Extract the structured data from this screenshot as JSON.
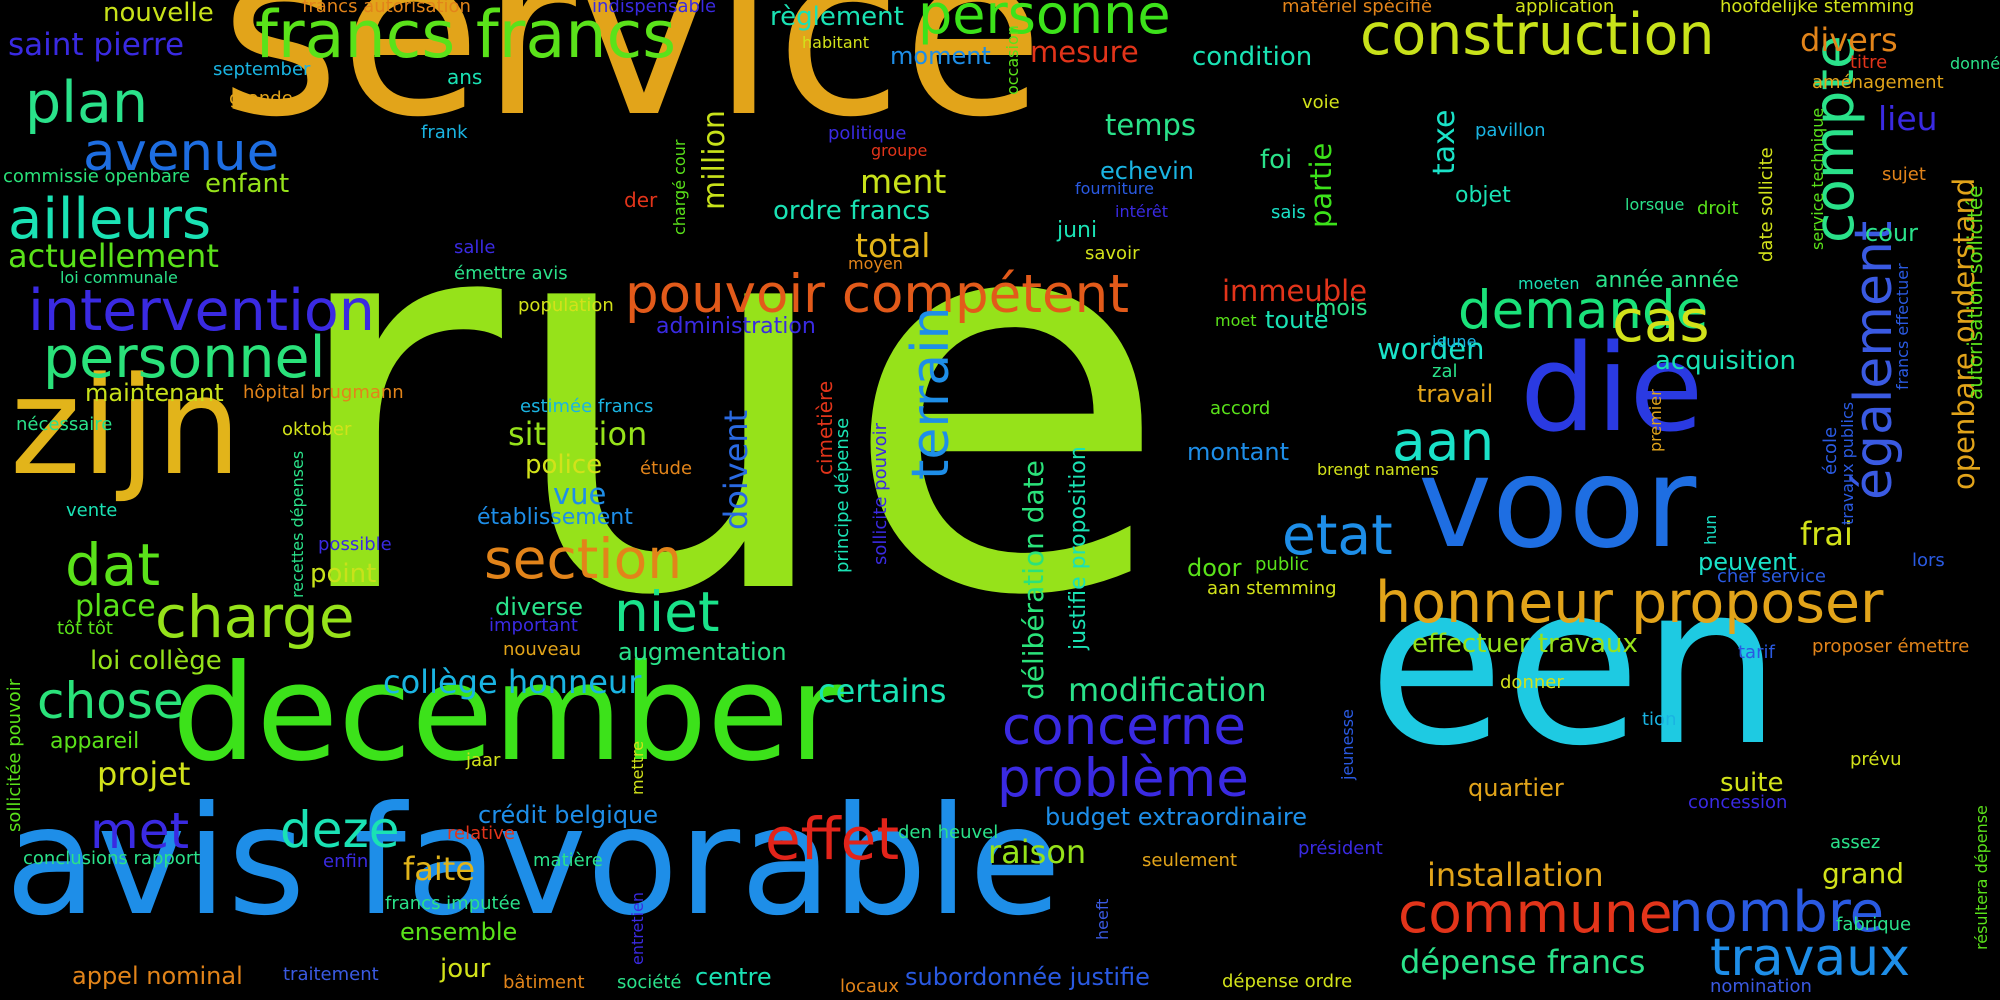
{
  "words": [
    {
      "text": "service",
      "color": "#E2A41A",
      "rot": 0
    },
    {
      "text": "rue",
      "color": "#96E21A",
      "rot": 0
    },
    {
      "text": "een",
      "color": "#1ECAE2",
      "rot": 0
    },
    {
      "text": "avis favorable",
      "color": "#1E8EE8",
      "rot": 0
    },
    {
      "text": "december",
      "color": "#3CE21A",
      "rot": 0
    },
    {
      "text": "zijn",
      "color": "#E2B41A",
      "rot": 0
    },
    {
      "text": "voor",
      "color": "#1E6EE2",
      "rot": 0
    },
    {
      "text": "die",
      "color": "#2A3AE2",
      "rot": 0
    },
    {
      "text": "honneur proposer",
      "color": "#E2A41A",
      "rot": 0
    },
    {
      "text": "construction",
      "color": "#C8E21A",
      "rot": 0
    },
    {
      "text": "francs francs",
      "color": "#5AE21A",
      "rot": 0
    },
    {
      "text": "personne",
      "color": "#3CE21A",
      "rot": 0
    },
    {
      "text": "pouvoir compétent",
      "color": "#E25A1A",
      "rot": 0
    },
    {
      "text": "intervention",
      "color": "#3A2AE2",
      "rot": 0
    },
    {
      "text": "personnel",
      "color": "#2AE27A",
      "rot": 0
    },
    {
      "text": "ailleurs",
      "color": "#1AE2B4",
      "rot": 0
    },
    {
      "text": "plan",
      "color": "#2AE28A",
      "rot": 0
    },
    {
      "text": "avenue",
      "color": "#1E6EE2",
      "rot": 0
    },
    {
      "text": "charge",
      "color": "#96E21A",
      "rot": 0
    },
    {
      "text": "dat",
      "color": "#5AE21A",
      "rot": 0
    },
    {
      "text": "chose",
      "color": "#2AE27A",
      "rot": 0
    },
    {
      "text": "concerne",
      "color": "#3A2AE2",
      "rot": 0
    },
    {
      "text": "problème",
      "color": "#3A2AE2",
      "rot": 0
    },
    {
      "text": "commune",
      "color": "#E2341A",
      "rot": 0
    },
    {
      "text": "nombre",
      "color": "#2A5AE2",
      "rot": 0
    },
    {
      "text": "travaux",
      "color": "#1E8EE8",
      "rot": 0
    },
    {
      "text": "effet",
      "color": "#E2241A",
      "rot": 0
    },
    {
      "text": "section",
      "color": "#E2841A",
      "rot": 0
    },
    {
      "text": "demande",
      "color": "#1AE27A",
      "rot": 0
    },
    {
      "text": "cas",
      "color": "#D2E21A",
      "rot": 0
    },
    {
      "text": "etat",
      "color": "#1E8EE8",
      "rot": 0
    },
    {
      "text": "niet",
      "color": "#1AE28A",
      "rot": 0
    },
    {
      "text": "deze",
      "color": "#1AE2B4",
      "rot": 0
    },
    {
      "text": "met",
      "color": "#3A2AE2",
      "rot": 0
    },
    {
      "text": "aan",
      "color": "#1AE2C8",
      "rot": 0
    },
    {
      "text": "compte",
      "color": "#2AE28A",
      "rot": -90
    },
    {
      "text": "terrain",
      "color": "#1E8EE8",
      "rot": -90
    },
    {
      "text": "également",
      "color": "#3A5AE2",
      "rot": -90
    },
    {
      "text": "délibération date",
      "color": "#2AE27A",
      "rot": -90
    },
    {
      "text": "openbare onderstand",
      "color": "#E2A41A",
      "rot": -90
    },
    {
      "text": "doivent",
      "color": "#2A6AE2",
      "rot": -90
    },
    {
      "text": "million",
      "color": "#C8E21A",
      "rot": -90
    },
    {
      "text": "taxe",
      "color": "#1AE2C8",
      "rot": -90
    },
    {
      "text": "partie",
      "color": "#3CE21A",
      "rot": -90
    },
    {
      "text": "divers",
      "color": "#E2841A",
      "rot": 0
    },
    {
      "text": "lieu",
      "color": "#3A2AE2",
      "rot": 0
    },
    {
      "text": "saint pierre",
      "color": "#3A2AE2",
      "rot": 0
    },
    {
      "text": "nouvelle",
      "color": "#C8E21A",
      "rot": 0
    },
    {
      "text": "actuellement",
      "color": "#5AE21A",
      "rot": 0
    },
    {
      "text": "maintenant",
      "color": "#C8E21A",
      "rot": 0
    },
    {
      "text": "mesure",
      "color": "#E2341A",
      "rot": 0
    },
    {
      "text": "condition",
      "color": "#1AE2B4",
      "rot": 0
    },
    {
      "text": "temps",
      "color": "#2AE28A",
      "rot": 0
    },
    {
      "text": "moment",
      "color": "#1E8EE8",
      "rot": 0
    },
    {
      "text": "règlement",
      "color": "#1AE2B4",
      "rot": 0
    },
    {
      "text": "ment",
      "color": "#C8E21A",
      "rot": 0
    },
    {
      "text": "ordre francs",
      "color": "#1AE2B4",
      "rot": 0
    },
    {
      "text": "total",
      "color": "#E2B41A",
      "rot": 0
    },
    {
      "text": "immeuble",
      "color": "#E2341A",
      "rot": 0
    },
    {
      "text": "enfant",
      "color": "#96E21A",
      "rot": 0
    },
    {
      "text": "worden",
      "color": "#1AE2C8",
      "rot": 0
    },
    {
      "text": "situation",
      "color": "#96E21A",
      "rot": 0
    },
    {
      "text": "police",
      "color": "#D2E21A",
      "rot": 0
    },
    {
      "text": "vue",
      "color": "#1E8EE8",
      "rot": 0
    },
    {
      "text": "place",
      "color": "#5AE21A",
      "rot": 0
    },
    {
      "text": "point",
      "color": "#C8E21A",
      "rot": 0
    },
    {
      "text": "loi collège",
      "color": "#96E21A",
      "rot": 0
    },
    {
      "text": "collège honneur",
      "color": "#1AB4E2",
      "rot": 0
    },
    {
      "text": "certains",
      "color": "#1AE2B4",
      "rot": 0
    },
    {
      "text": "modification",
      "color": "#2AE28A",
      "rot": 0
    },
    {
      "text": "effectuer travaux",
      "color": "#96E21A",
      "rot": 0
    },
    {
      "text": "installation",
      "color": "#E2A41A",
      "rot": 0
    },
    {
      "text": "dépense francs",
      "color": "#2AE28A",
      "rot": 0
    },
    {
      "text": "raison",
      "color": "#96E21A",
      "rot": 0
    },
    {
      "text": "faite",
      "color": "#E2B41A",
      "rot": 0
    },
    {
      "text": "projet",
      "color": "#D2E21A",
      "rot": 0
    },
    {
      "text": "appel nominal",
      "color": "#E2841A",
      "rot": 0
    },
    {
      "text": "conclusions rapport",
      "color": "#2AE28A",
      "rot": 0
    },
    {
      "text": "montant",
      "color": "#1E8EE8",
      "rot": 0
    },
    {
      "text": "frai",
      "color": "#D2E21A",
      "rot": 0
    },
    {
      "text": "peuvent",
      "color": "#1AE2C8",
      "rot": 0
    },
    {
      "text": "acquisition",
      "color": "#1AE2B4",
      "rot": 0
    },
    {
      "text": "travail",
      "color": "#E2A41A",
      "rot": 0
    },
    {
      "text": "mois",
      "color": "#2AE28A",
      "rot": 0
    },
    {
      "text": "toute",
      "color": "#1AE2B4",
      "rot": 0
    },
    {
      "text": "grand",
      "color": "#D2E21A",
      "rot": 0
    },
    {
      "text": "suite",
      "color": "#D2E21A",
      "rot": 0
    },
    {
      "text": "quartier",
      "color": "#E2A41A",
      "rot": 0
    },
    {
      "text": "budget extraordinaire",
      "color": "#1E8EE8",
      "rot": 0
    },
    {
      "text": "crédit belgique",
      "color": "#1E8EE8",
      "rot": 0
    },
    {
      "text": "diverse",
      "color": "#2AE28A",
      "rot": 0
    },
    {
      "text": "augmentation",
      "color": "#2AE28A",
      "rot": 0
    },
    {
      "text": "établissement",
      "color": "#1E8EE8",
      "rot": 0
    },
    {
      "text": "ensemble",
      "color": "#5AE21A",
      "rot": 0
    },
    {
      "text": "jour",
      "color": "#D2E21A",
      "rot": 0
    },
    {
      "text": "centre",
      "color": "#1AE2B4",
      "rot": 0
    },
    {
      "text": "door",
      "color": "#5AE21A",
      "rot": 0
    },
    {
      "text": "cour",
      "color": "#2AE28A",
      "rot": 0
    },
    {
      "text": "objet",
      "color": "#1AE2B4",
      "rot": 0
    },
    {
      "text": "foi",
      "color": "#2AE28A",
      "rot": 0
    },
    {
      "text": "echevin",
      "color": "#1AB4E2",
      "rot": 0
    },
    {
      "text": "juni",
      "color": "#1AE2B4",
      "rot": 0
    },
    {
      "text": "appareil",
      "color": "#5AE21A",
      "rot": 0
    },
    {
      "text": "année année",
      "color": "#2AE28A",
      "rot": 0
    },
    {
      "text": "subordonnée justifie",
      "color": "#2A5AE2",
      "rot": 0
    },
    {
      "text": "administration",
      "color": "#3A2AE2",
      "rot": 0
    },
    {
      "text": "dépense ordre",
      "color": "#D2E21A",
      "rot": 0
    },
    {
      "text": "commissie openbare",
      "color": "#2AE27A",
      "rot": 0
    },
    {
      "text": "francs autorisation",
      "color": "#E2841A",
      "rot": 0
    },
    {
      "text": "indispensable",
      "color": "#3A2AE2",
      "rot": 0
    },
    {
      "text": "matériel spécifié",
      "color": "#E2841A",
      "rot": 0
    },
    {
      "text": "application",
      "color": "#D2E21A",
      "rot": 0
    },
    {
      "text": "hoofdelijke stemming",
      "color": "#D2E21A",
      "rot": 0
    },
    {
      "text": "donné",
      "color": "#2AE28A",
      "rot": 0
    },
    {
      "text": "titre",
      "color": "#E2341A",
      "rot": 0
    },
    {
      "text": "aménagement",
      "color": "#E2A41A",
      "rot": 0
    },
    {
      "text": "september",
      "color": "#1AB4E2",
      "rot": 0
    },
    {
      "text": "habitant",
      "color": "#D2E21A",
      "rot": 0
    },
    {
      "text": "grande",
      "color": "#E2A41A",
      "rot": 0
    },
    {
      "text": "ans",
      "color": "#1AE2B4",
      "rot": 0
    },
    {
      "text": "frank",
      "color": "#1AB4E2",
      "rot": 0
    },
    {
      "text": "politique",
      "color": "#3A2AE2",
      "rot": 0
    },
    {
      "text": "groupe",
      "color": "#E2341A",
      "rot": 0
    },
    {
      "text": "voie",
      "color": "#D2E21A",
      "rot": 0
    },
    {
      "text": "pavillon",
      "color": "#1AB4E2",
      "rot": 0
    },
    {
      "text": "sujet",
      "color": "#E2841A",
      "rot": 0
    },
    {
      "text": "fourniture",
      "color": "#2A5AE2",
      "rot": 0
    },
    {
      "text": "intérêt",
      "color": "#3A2AE2",
      "rot": 0
    },
    {
      "text": "lorsque",
      "color": "#2AE28A",
      "rot": 0
    },
    {
      "text": "droit",
      "color": "#5AE21A",
      "rot": 0
    },
    {
      "text": "sais",
      "color": "#1AE2C8",
      "rot": 0
    },
    {
      "text": "der",
      "color": "#E2341A",
      "rot": 0
    },
    {
      "text": "salle",
      "color": "#3A2AE2",
      "rot": 0
    },
    {
      "text": "émettre avis",
      "color": "#2AE28A",
      "rot": 0
    },
    {
      "text": "moyen",
      "color": "#E2841A",
      "rot": 0
    },
    {
      "text": "savoir",
      "color": "#D2E21A",
      "rot": 0
    },
    {
      "text": "loi communale",
      "color": "#2AE28A",
      "rot": 0
    },
    {
      "text": "moeten",
      "color": "#1AE2B4",
      "rot": 0
    },
    {
      "text": "population",
      "color": "#D2E21A",
      "rot": 0
    },
    {
      "text": "moet",
      "color": "#5AE21A",
      "rot": 0
    },
    {
      "text": "jeune",
      "color": "#1AB4E2",
      "rot": 0
    },
    {
      "text": "zal",
      "color": "#2AE28A",
      "rot": 0
    },
    {
      "text": "estimée francs",
      "color": "#1AB4E2",
      "rot": 0
    },
    {
      "text": "hôpital brugmann",
      "color": "#E2841A",
      "rot": 0
    },
    {
      "text": "oktober",
      "color": "#D2E21A",
      "rot": 0
    },
    {
      "text": "nécessaire",
      "color": "#2AE28A",
      "rot": 0
    },
    {
      "text": "accord",
      "color": "#5AE21A",
      "rot": 0
    },
    {
      "text": "brengt namens",
      "color": "#D2E21A",
      "rot": 0
    },
    {
      "text": "étude",
      "color": "#E2841A",
      "rot": 0
    },
    {
      "text": "vente",
      "color": "#1AE2B4",
      "rot": 0
    },
    {
      "text": "possible",
      "color": "#3A2AE2",
      "rot": 0
    },
    {
      "text": "public",
      "color": "#5AE21A",
      "rot": 0
    },
    {
      "text": "aan stemming",
      "color": "#D2E21A",
      "rot": 0
    },
    {
      "text": "chef service",
      "color": "#2A5AE2",
      "rot": 0
    },
    {
      "text": "lors",
      "color": "#2A5AE2",
      "rot": 0
    },
    {
      "text": "tôt tôt",
      "color": "#5AE21A",
      "rot": 0
    },
    {
      "text": "important",
      "color": "#3A2AE2",
      "rot": 0
    },
    {
      "text": "nouveau",
      "color": "#E2A41A",
      "rot": 0
    },
    {
      "text": "tarif",
      "color": "#2A5AE2",
      "rot": 0
    },
    {
      "text": "proposer émettre",
      "color": "#E2841A",
      "rot": 0
    },
    {
      "text": "donner",
      "color": "#D2E21A",
      "rot": 0
    },
    {
      "text": "tion",
      "color": "#1AB4E2",
      "rot": 0
    },
    {
      "text": "prévu",
      "color": "#D2E21A",
      "rot": 0
    },
    {
      "text": "concession",
      "color": "#3A2AE2",
      "rot": 0
    },
    {
      "text": "jaar",
      "color": "#D2E21A",
      "rot": 0
    },
    {
      "text": "relative",
      "color": "#E2341A",
      "rot": 0
    },
    {
      "text": "den heuvel",
      "color": "#2AE28A",
      "rot": 0
    },
    {
      "text": "président",
      "color": "#3A2AE2",
      "rot": 0
    },
    {
      "text": "assez",
      "color": "#2AE28A",
      "rot": 0
    },
    {
      "text": "enfin",
      "color": "#3A2AE2",
      "rot": 0
    },
    {
      "text": "francs imputée",
      "color": "#2AE28A",
      "rot": 0
    },
    {
      "text": "seulement",
      "color": "#E2A41A",
      "rot": 0
    },
    {
      "text": "matière",
      "color": "#2AE28A",
      "rot": 0
    },
    {
      "text": "fabrique",
      "color": "#2AE28A",
      "rot": 0
    },
    {
      "text": "traitement",
      "color": "#3A5AE2",
      "rot": 0
    },
    {
      "text": "bâtiment",
      "color": "#E2841A",
      "rot": 0
    },
    {
      "text": "société",
      "color": "#2AE28A",
      "rot": 0
    },
    {
      "text": "locaux",
      "color": "#E2841A",
      "rot": 0
    },
    {
      "text": "nomination",
      "color": "#3A5AE2",
      "rot": 0
    },
    {
      "text": "occasion",
      "color": "#5AE21A",
      "rot": -90
    },
    {
      "text": "chargé cour",
      "color": "#5AE21A",
      "rot": -90
    },
    {
      "text": "principe dépense",
      "color": "#1AE2B4",
      "rot": -90
    },
    {
      "text": "cimetière",
      "color": "#E2341A",
      "rot": -90
    },
    {
      "text": "sollicite pouvoir",
      "color": "#3A2AE2",
      "rot": -90
    },
    {
      "text": "justifie proposition",
      "color": "#1AE2B4",
      "rot": -90
    },
    {
      "text": "recettes dépenses",
      "color": "#2AE28A",
      "rot": -90
    },
    {
      "text": "sollicitée pouvoir",
      "color": "#5AE21A",
      "rot": -90
    },
    {
      "text": "mettre",
      "color": "#D2E21A",
      "rot": -90
    },
    {
      "text": "entretien",
      "color": "#3A2AE2",
      "rot": -90
    },
    {
      "text": "heeft",
      "color": "#3A5AE2",
      "rot": -90
    },
    {
      "text": "jeunesse",
      "color": "#2A5AE2",
      "rot": -90
    },
    {
      "text": "premier",
      "color": "#E2A41A",
      "rot": -90
    },
    {
      "text": "hun",
      "color": "#1AE2C8",
      "rot": -90
    },
    {
      "text": "date sollicite",
      "color": "#D2E21A",
      "rot": -90
    },
    {
      "text": "service technique",
      "color": "#5AE21A",
      "rot": -90
    },
    {
      "text": "école",
      "color": "#2A5AE2",
      "rot": -90
    },
    {
      "text": "travaux publics",
      "color": "#2A5AE2",
      "rot": -90
    },
    {
      "text": "francs effectuer",
      "color": "#2A5AE2",
      "rot": -90
    },
    {
      "text": "autorisation sollicitée",
      "color": "#5AE21A",
      "rot": -90
    },
    {
      "text": "résultera dépense",
      "color": "#5AE21A",
      "rot": -90
    }
  ]
}
